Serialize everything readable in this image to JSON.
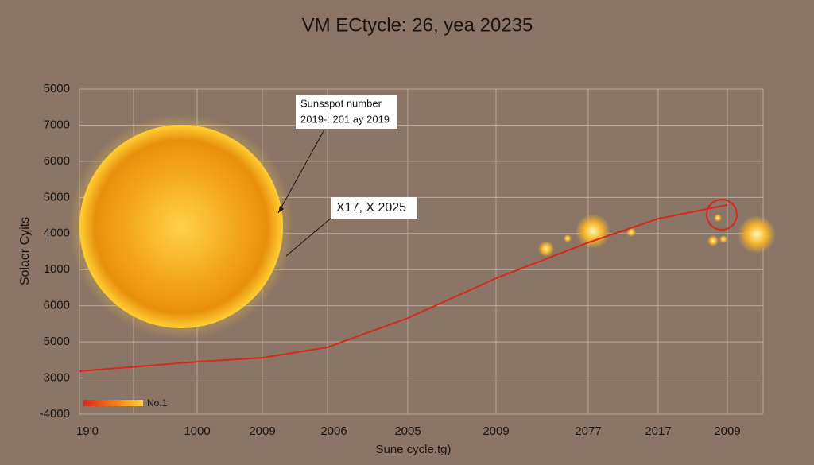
{
  "chart_data": {
    "type": "line",
    "title": "VM ECtycle: 26, yea 20235",
    "xlabel": "Sune cycle.tg)",
    "ylabel": "Solaer Cyits",
    "categories": [
      "19'0",
      "1000",
      "2009",
      "2006",
      "2005",
      "2009",
      "2077",
      "2017",
      "2009"
    ],
    "series": [
      {
        "name": "No.1",
        "color": "#d9281c",
        "values": [
          1.19,
          1.45,
          1.56,
          1.85,
          2.66,
          3.76,
          4.75,
          5.41,
          5.79
        ]
      }
    ],
    "ylim": [
      0,
      9
    ],
    "yticks": [
      {
        "value": 0,
        "label": "-4000"
      },
      {
        "value": 1,
        "label": "3000"
      },
      {
        "value": 2,
        "label": "5000"
      },
      {
        "value": 3,
        "label": "6000"
      },
      {
        "value": 4,
        "label": "1000"
      },
      {
        "value": 5,
        "label": "4000"
      },
      {
        "value": 6,
        "label": "5000"
      },
      {
        "value": 7,
        "label": "6000"
      },
      {
        "value": 8,
        "label": "7000"
      },
      {
        "value": 9,
        "label": "5000"
      }
    ],
    "grid": true,
    "annotations": [
      {
        "lines": [
          "Sunsspot number",
          "2019-: 201 ay 2019"
        ]
      },
      {
        "lines": [
          "X17, X 2025"
        ]
      }
    ]
  }
}
